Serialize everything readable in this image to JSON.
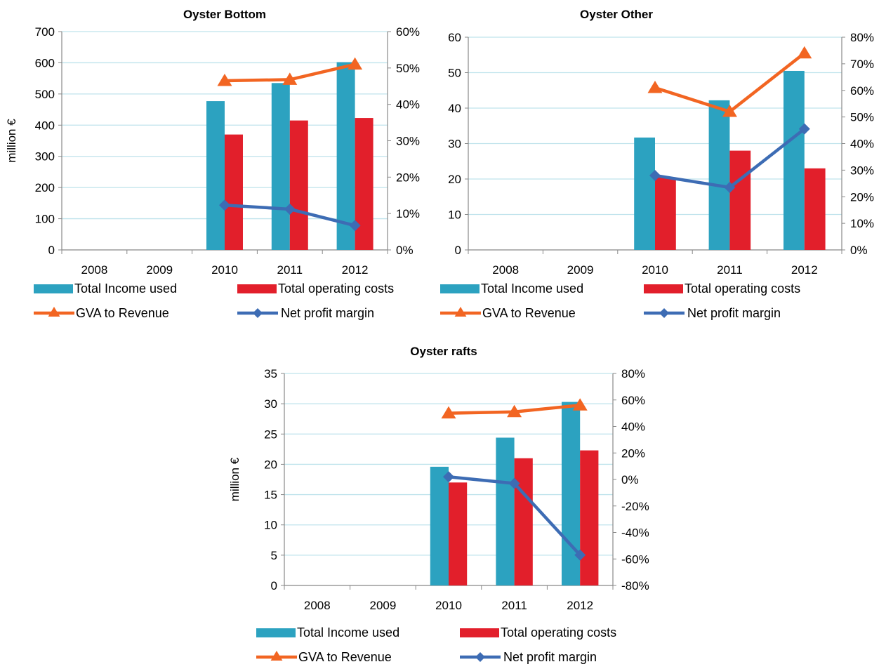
{
  "colors": {
    "income": "#2CA2C0",
    "costs": "#E21F2B",
    "gva": "#F26522",
    "npm": "#3D6CB4",
    "grid": "#BFE3EC",
    "axis": "#888888"
  },
  "legend": {
    "income": "Total Income used",
    "costs": "Total operating costs",
    "gva": "GVA to Revenue",
    "npm": "Net profit margin"
  },
  "chart_data": [
    {
      "type": "bar",
      "title": "Oyster Bottom",
      "ylabel": "million €",
      "categories": [
        "2008",
        "2009",
        "2010",
        "2011",
        "2012"
      ],
      "ylim": [
        0,
        700
      ],
      "yticks": [
        "0",
        "100",
        "200",
        "300",
        "400",
        "500",
        "600",
        "700"
      ],
      "y2lim": [
        0,
        0.6
      ],
      "y2ticks": [
        "0%",
        "10%",
        "20%",
        "30%",
        "40%",
        "50%",
        "60%"
      ],
      "series": [
        {
          "name": "Total Income used",
          "type": "bar",
          "axis": "left",
          "values": [
            null,
            null,
            477,
            535,
            602
          ]
        },
        {
          "name": "Total operating costs",
          "type": "bar",
          "axis": "left",
          "values": [
            null,
            null,
            370,
            415,
            423
          ]
        },
        {
          "name": "GVA to Revenue",
          "type": "line",
          "axis": "right",
          "values": [
            null,
            null,
            0.465,
            0.468,
            0.51
          ]
        },
        {
          "name": "Net profit margin",
          "type": "line",
          "axis": "right",
          "values": [
            null,
            null,
            0.123,
            0.112,
            0.067
          ]
        }
      ]
    },
    {
      "type": "bar",
      "title": "Oyster Other",
      "ylabel": "",
      "categories": [
        "2008",
        "2009",
        "2010",
        "2011",
        "2012"
      ],
      "ylim": [
        0,
        60
      ],
      "yticks": [
        "0",
        "10",
        "20",
        "30",
        "40",
        "50",
        "60"
      ],
      "y2lim": [
        0,
        0.8
      ],
      "y2ticks": [
        "0%",
        "10%",
        "20%",
        "30%",
        "40%",
        "50%",
        "60%",
        "70%",
        "80%"
      ],
      "series": [
        {
          "name": "Total Income used",
          "type": "bar",
          "axis": "left",
          "values": [
            null,
            null,
            31.7,
            42.2,
            50.5
          ]
        },
        {
          "name": "Total operating costs",
          "type": "bar",
          "axis": "left",
          "values": [
            null,
            null,
            20.5,
            28.0,
            23.0
          ]
        },
        {
          "name": "GVA to Revenue",
          "type": "line",
          "axis": "right",
          "values": [
            null,
            null,
            0.61,
            0.52,
            0.74
          ]
        },
        {
          "name": "Net profit margin",
          "type": "line",
          "axis": "right",
          "values": [
            null,
            null,
            0.28,
            0.235,
            0.455
          ]
        }
      ]
    },
    {
      "type": "bar",
      "title": "Oyster rafts",
      "ylabel": "million €",
      "categories": [
        "2008",
        "2009",
        "2010",
        "2011",
        "2012"
      ],
      "ylim": [
        0,
        35
      ],
      "yticks": [
        "0",
        "5",
        "10",
        "15",
        "20",
        "25",
        "30",
        "35"
      ],
      "y2lim": [
        -0.8,
        0.8
      ],
      "y2ticks": [
        "-80%",
        "-60%",
        "-40%",
        "-20%",
        "0%",
        "20%",
        "40%",
        "60%",
        "80%"
      ],
      "series": [
        {
          "name": "Total Income used",
          "type": "bar",
          "axis": "left",
          "values": [
            null,
            null,
            19.6,
            24.4,
            30.3
          ]
        },
        {
          "name": "Total operating costs",
          "type": "bar",
          "axis": "left",
          "values": [
            null,
            null,
            17.0,
            21.0,
            22.3
          ]
        },
        {
          "name": "GVA to Revenue",
          "type": "line",
          "axis": "right",
          "values": [
            null,
            null,
            0.5,
            0.51,
            0.56
          ]
        },
        {
          "name": "Net profit margin",
          "type": "line",
          "axis": "right",
          "values": [
            null,
            null,
            0.02,
            -0.03,
            -0.57
          ]
        }
      ]
    }
  ]
}
